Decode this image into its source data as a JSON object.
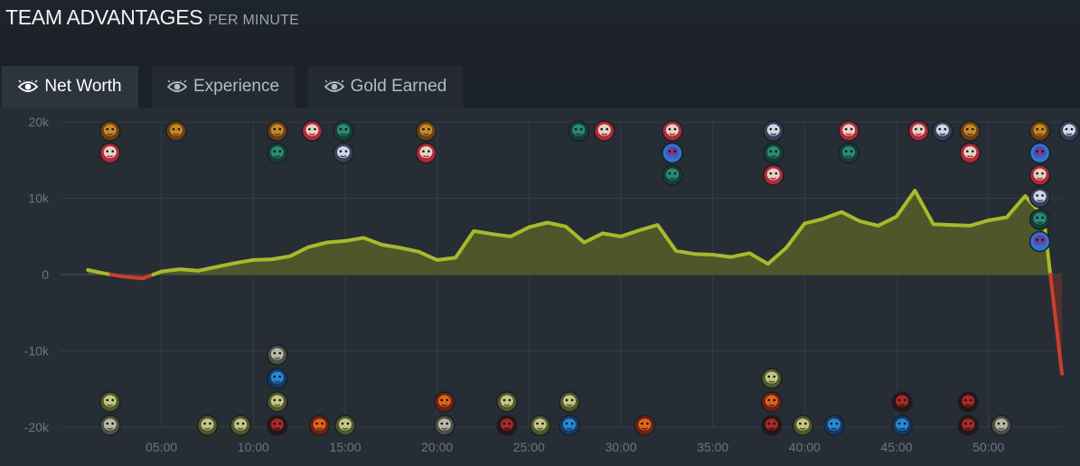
{
  "header": {
    "title": "TEAM ADVANTAGES",
    "subtitle": "PER MINUTE"
  },
  "tabs": [
    {
      "label": "Net Worth",
      "active": true,
      "icon": "eye-icon"
    },
    {
      "label": "Experience",
      "active": false,
      "icon": "eye-icon"
    },
    {
      "label": "Gold Earned",
      "active": false,
      "icon": "eye-icon"
    }
  ],
  "colors": {
    "positive": "#a8b92d",
    "positive_fill": "#505a2a",
    "negative": "#c8402e",
    "negative_fill": "#5a2e2e",
    "grid": "#343c45",
    "zero_line": "#4a525b"
  },
  "chart_data": {
    "type": "area",
    "title": "",
    "xlabel": "",
    "ylabel": "",
    "xlim": [
      0,
      54
    ],
    "ylim": [
      -20000,
      20000
    ],
    "x_ticks": [
      "05:00",
      "10:00",
      "15:00",
      "20:00",
      "25:00",
      "30:00",
      "35:00",
      "40:00",
      "45:00",
      "50:00"
    ],
    "x_tick_values": [
      5,
      10,
      15,
      20,
      25,
      30,
      35,
      40,
      45,
      50
    ],
    "y_ticks": [
      "20k",
      "10k",
      "0",
      "-10k",
      "-20k"
    ],
    "y_tick_values": [
      20000,
      10000,
      0,
      -10000,
      -20000
    ],
    "grid": true,
    "series": [
      {
        "x": [
          1,
          2,
          3,
          4,
          5,
          6,
          7,
          8,
          9,
          10,
          11,
          12,
          13,
          14,
          15,
          16,
          17,
          18,
          19,
          20,
          21,
          22,
          23,
          24,
          25,
          26,
          27,
          28,
          29,
          30,
          31,
          32,
          33,
          34,
          35,
          36,
          37,
          38,
          39,
          40,
          41,
          42,
          43,
          44,
          45,
          46,
          47,
          48,
          49,
          50,
          51,
          52,
          53,
          54
        ],
        "values": [
          600,
          100,
          -300,
          -500,
          400,
          700,
          500,
          1000,
          1500,
          1900,
          2000,
          2400,
          3600,
          4200,
          4400,
          4800,
          3900,
          3500,
          3000,
          1900,
          2200,
          5700,
          5300,
          5000,
          6200,
          6800,
          6300,
          4200,
          5400,
          5000,
          5800,
          6500,
          3100,
          2700,
          2600,
          2300,
          2800,
          1400,
          3500,
          6700,
          7300,
          8200,
          7000,
          6400,
          7600,
          11000,
          6600,
          6500,
          6400,
          7100,
          7500,
          10300,
          7600,
          -13000
        ]
      }
    ],
    "markers_top": [
      {
        "x": 2.2,
        "icons": [
          "gold-warrior-icon",
          "red-mask-icon"
        ]
      },
      {
        "x": 5.8,
        "icons": [
          "gold-warrior-icon"
        ]
      },
      {
        "x": 11.3,
        "icons": [
          "gold-warrior-icon",
          "teal-beast-icon"
        ]
      },
      {
        "x": 13.2,
        "icons": [
          "red-mask-icon"
        ]
      },
      {
        "x": 14.9,
        "icons": [
          "teal-beast-icon",
          "silver-horned-icon"
        ]
      },
      {
        "x": 19.4,
        "icons": [
          "gold-warrior-icon",
          "red-mask-icon"
        ]
      },
      {
        "x": 27.7,
        "icons": [
          "teal-beast-icon"
        ]
      },
      {
        "x": 29.1,
        "icons": [
          "red-mask-icon"
        ]
      },
      {
        "x": 32.8,
        "icons": [
          "red-mask-icon",
          "blue-spirit-icon",
          "teal-beast-icon"
        ]
      },
      {
        "x": 38.3,
        "icons": [
          "silver-horned-icon",
          "teal-beast-icon",
          "red-mask-icon"
        ]
      },
      {
        "x": 42.4,
        "icons": [
          "red-mask-icon",
          "teal-beast-icon"
        ]
      },
      {
        "x": 46.2,
        "icons": [
          "red-mask-icon"
        ]
      },
      {
        "x": 47.5,
        "icons": [
          "silver-horned-icon"
        ]
      },
      {
        "x": 49.0,
        "icons": [
          "gold-warrior-icon",
          "red-mask-icon"
        ]
      },
      {
        "x": 52.8,
        "icons": [
          "gold-warrior-icon",
          "blue-spirit-icon",
          "red-mask-icon",
          "silver-horned-icon",
          "teal-beast-icon",
          "blue-spirit-icon"
        ]
      },
      {
        "x": 54.5,
        "icons": [
          "silver-horned-icon"
        ]
      }
    ],
    "markers_bottom": [
      {
        "x": 2.2,
        "icons": [
          "grey-golem-icon",
          "olive-troll-icon"
        ]
      },
      {
        "x": 7.5,
        "icons": [
          "olive-troll-icon"
        ]
      },
      {
        "x": 9.3,
        "icons": [
          "olive-troll-icon"
        ]
      },
      {
        "x": 11.3,
        "icons": [
          "crimson-demon-icon",
          "olive-troll-icon",
          "blue-crab-icon",
          "grey-golem-icon"
        ]
      },
      {
        "x": 13.6,
        "icons": [
          "orange-brute-icon"
        ]
      },
      {
        "x": 15.0,
        "icons": [
          "olive-troll-icon"
        ]
      },
      {
        "x": 20.4,
        "icons": [
          "grey-golem-icon",
          "orange-brute-icon"
        ]
      },
      {
        "x": 23.8,
        "icons": [
          "crimson-demon-icon",
          "olive-troll-icon"
        ]
      },
      {
        "x": 25.6,
        "icons": [
          "olive-troll-icon"
        ]
      },
      {
        "x": 27.2,
        "icons": [
          "blue-crab-icon",
          "olive-troll-icon"
        ]
      },
      {
        "x": 31.3,
        "icons": [
          "orange-brute-icon"
        ]
      },
      {
        "x": 38.2,
        "icons": [
          "crimson-demon-icon",
          "orange-brute-icon",
          "olive-troll-icon"
        ]
      },
      {
        "x": 39.9,
        "icons": [
          "olive-troll-icon"
        ]
      },
      {
        "x": 41.6,
        "icons": [
          "blue-crab-icon"
        ]
      },
      {
        "x": 45.3,
        "icons": [
          "blue-crab-icon",
          "crimson-demon-icon"
        ]
      },
      {
        "x": 48.9,
        "icons": [
          "crimson-demon-icon",
          "crimson-demon-icon"
        ]
      },
      {
        "x": 50.7,
        "icons": [
          "grey-golem-icon"
        ]
      }
    ]
  }
}
